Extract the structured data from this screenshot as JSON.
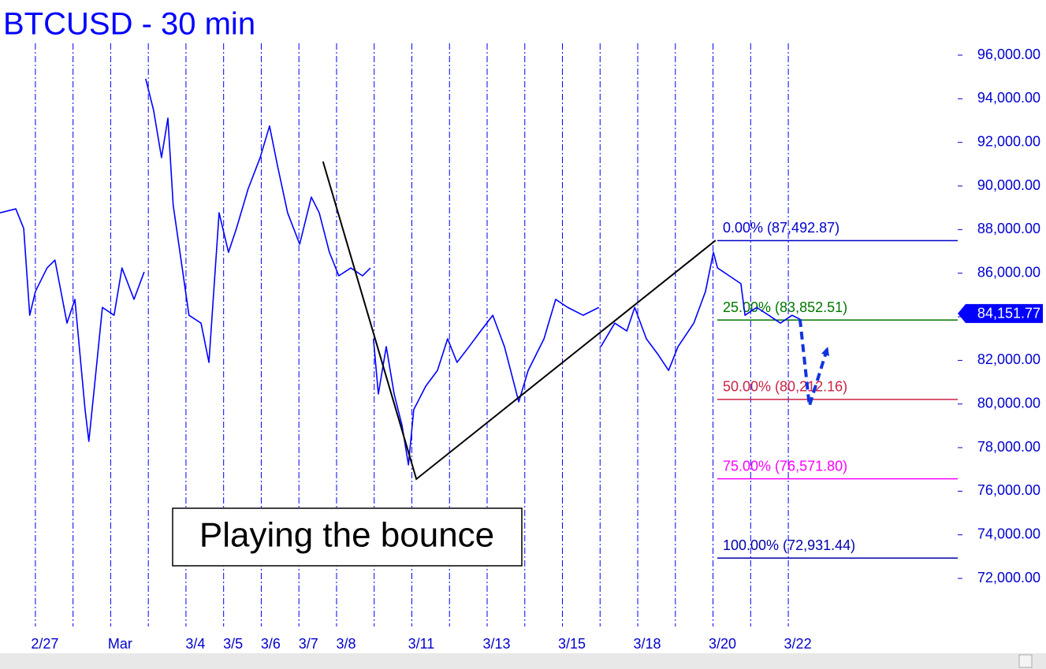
{
  "chart_data": {
    "type": "line",
    "title": "BTCUSD - 30 min",
    "categories": [
      "2/27",
      null,
      "Mar",
      null,
      "3/4",
      "3/5",
      "3/6",
      "3/7",
      "3/8",
      null,
      "3/11",
      null,
      "3/13",
      null,
      "3/15",
      null,
      "3/18",
      null,
      "3/20",
      null,
      "3/22"
    ],
    "xlim": [
      -0.94,
      24.5
    ],
    "ylim": [
      69617,
      98530
    ],
    "yticks": [
      {
        "value": 72000,
        "label": "72,000.00"
      },
      {
        "value": 74000,
        "label": "74,000.00"
      },
      {
        "value": 76000,
        "label": "76,000.00"
      },
      {
        "value": 78000,
        "label": "78,000.00"
      },
      {
        "value": 80000,
        "label": "80,000.00"
      },
      {
        "value": 82000,
        "label": "82,000.00"
      },
      {
        "value": 84000,
        "label": "84,000.00"
      },
      {
        "value": 86000,
        "label": "86,000.00"
      },
      {
        "value": 88000,
        "label": "88,000.00"
      },
      {
        "value": 90000,
        "label": "90,000.00"
      },
      {
        "value": 92000,
        "label": "92,000.00"
      },
      {
        "value": 94000,
        "label": "94,000.00"
      },
      {
        "value": 96000,
        "label": "96,000.00"
      }
    ],
    "color": "#0000ff",
    "x": [
      -0.94,
      -0.52,
      -0.31,
      -0.15,
      0,
      0.31,
      0.52,
      0.84,
      1.05,
      1.32,
      1.42,
      1.57,
      1.78,
      2.09,
      2.3,
      2.62,
      2.89,
      2.91,
      2.93,
      3.14,
      3.35,
      3.52,
      3.66,
      3.87,
      4.08,
      4.4,
      4.61,
      4.88,
      5.13,
      5.34,
      5.65,
      5.97,
      6.22,
      6.43,
      6.7,
      7.02,
      7.33,
      7.54,
      7.81,
      8.06,
      8.38,
      8.69,
      8.9,
      8.94,
      8.98,
      9.11,
      9.32,
      9.53,
      9.74,
      9.91,
      10.05,
      10.37,
      10.68,
      10.95,
      11.2,
      11.52,
      11.83,
      12.15,
      12.46,
      12.84,
      13.09,
      13.51,
      13.82,
      14.14,
      14.55,
      14.97,
      14.99,
      15.02,
      15.39,
      15.71,
      15.92,
      16.23,
      16.54,
      16.82,
      17.07,
      17.49,
      17.8,
      18.01,
      18.12,
      18.43,
      18.74,
      18.85,
      19.16,
      19.48,
      19.79,
      20.1,
      20.31
    ],
    "values": [
      88770,
      88950,
      88050,
      84070,
      85160,
      86240,
      86600,
      83710,
      84800,
      79740,
      78290,
      80820,
      84430,
      84070,
      86240,
      84800,
      86060,
      null,
      94920,
      93470,
      91300,
      93110,
      89130,
      86600,
      84070,
      83710,
      81910,
      88770,
      86960,
      88050,
      89860,
      91300,
      92750,
      90940,
      88770,
      87330,
      89490,
      88770,
      86960,
      85880,
      86240,
      85880,
      86240,
      null,
      82990,
      80460,
      82630,
      80460,
      79010,
      77210,
      79740,
      80820,
      81540,
      82990,
      81910,
      82630,
      83350,
      84070,
      82630,
      80100,
      81540,
      82990,
      84800,
      84430,
      84070,
      84430,
      null,
      82630,
      83710,
      83350,
      84430,
      82990,
      82270,
      81540,
      82630,
      83710,
      85160,
      86960,
      86240,
      85880,
      85520,
      84070,
      84430,
      84070,
      83710,
      84070,
      83890
    ],
    "levels": [
      {
        "label": "0.00% (87,492.87)",
        "value": 87492.87,
        "color": "#0000cc"
      },
      {
        "label": "25.00% (83,852.51)",
        "value": 83852.51,
        "color": "#007700"
      },
      {
        "label": "50.00% (80,212.16)",
        "value": 80212.16,
        "color": "#cc2244"
      },
      {
        "label": "75.00% (76,571.80)",
        "value": 76571.8,
        "color": "#ff00ff"
      },
      {
        "label": "100.00% (72,931.44)",
        "value": 72931.44,
        "color": "#0000aa"
      }
    ],
    "last_price": {
      "label": "84,151.77",
      "value": 84151.77
    },
    "trendline": {
      "x": [
        7.64,
        10.12,
        18.07
      ],
      "values": [
        91121,
        76557,
        87507
      ]
    },
    "forecast": {
      "x": [
        20.31,
        20.56,
        21.05
      ],
      "values": [
        83894,
        79918,
        82629
      ]
    },
    "annotation": "Playing the bounce"
  }
}
